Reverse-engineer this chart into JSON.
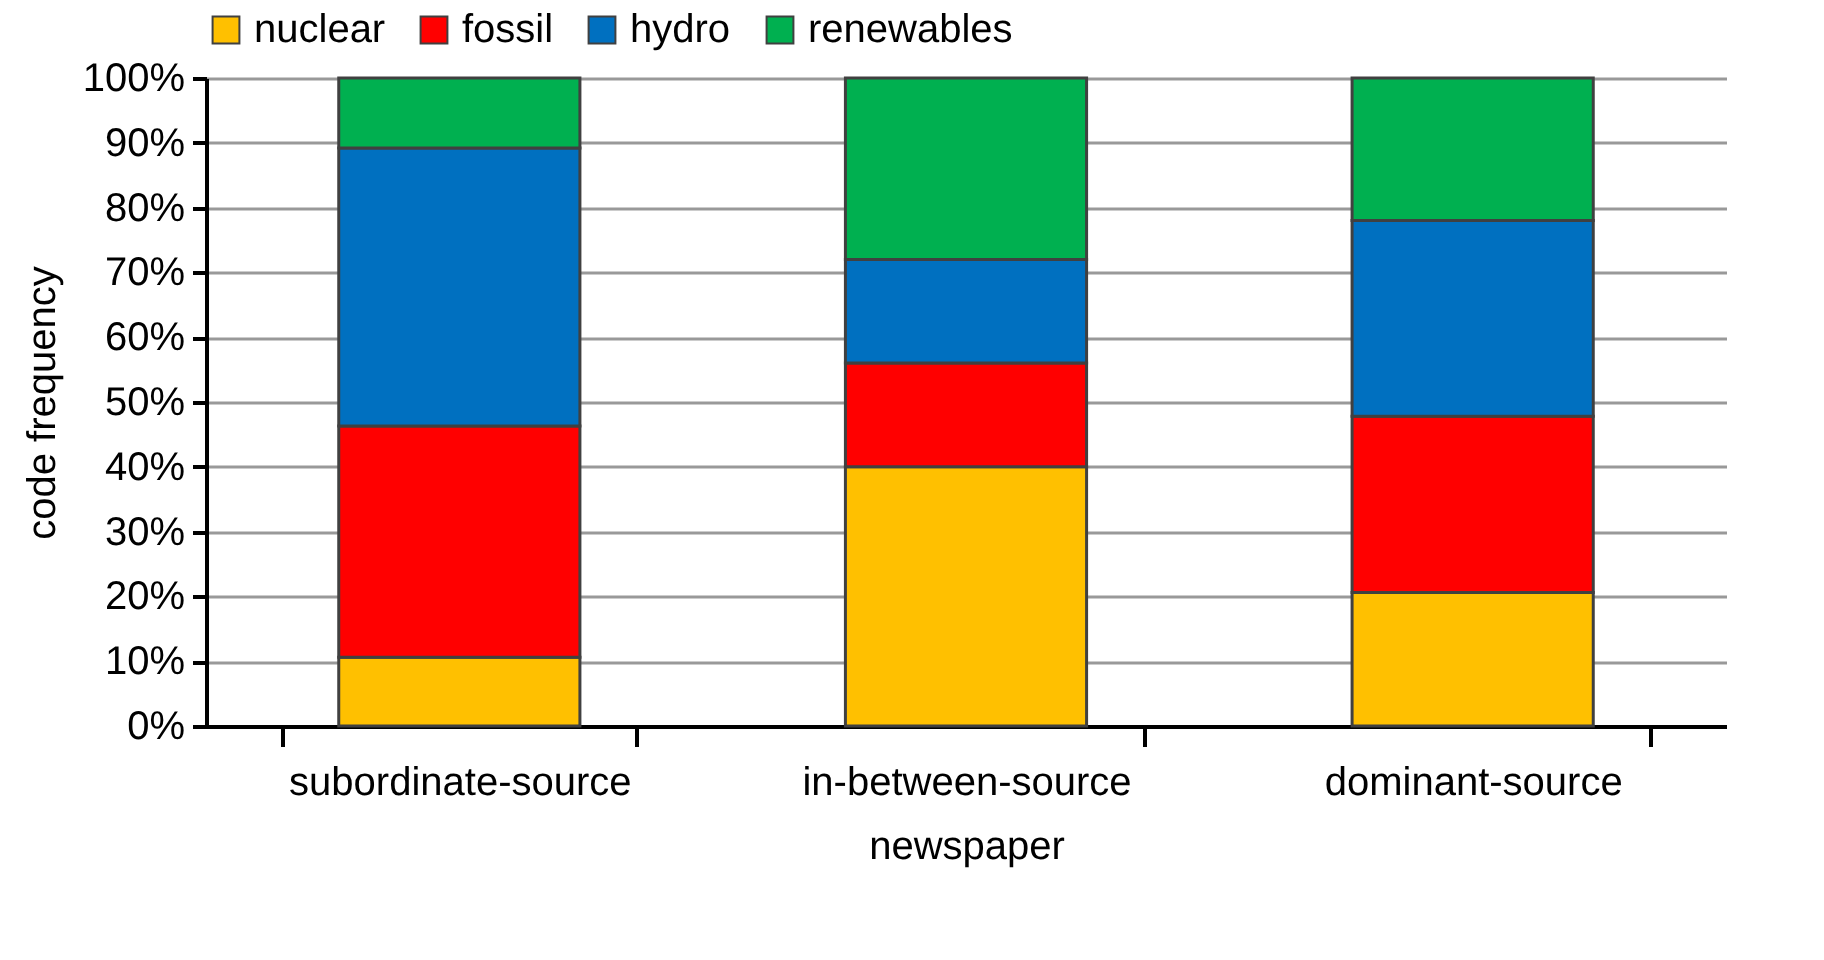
{
  "chart_data": {
    "type": "bar",
    "stacked": true,
    "xlabel": "newspaper",
    "ylabel": "code frequency",
    "categories": [
      "subordinate-source",
      "in-between-source",
      "dominant-source"
    ],
    "series": [
      {
        "name": "nuclear",
        "color": "#ffc000",
        "values": [
          10.6,
          40,
          20.6
        ]
      },
      {
        "name": "fossil",
        "color": "#ff0000",
        "values": [
          35.7,
          16,
          27.2
        ]
      },
      {
        "name": "hydro",
        "color": "#0070c0",
        "values": [
          42.9,
          16,
          30.2
        ]
      },
      {
        "name": "renewables",
        "color": "#00b050",
        "values": [
          10.8,
          28,
          22
        ]
      }
    ],
    "ylim": [
      0,
      100
    ],
    "yticks": [
      {
        "value": 0,
        "label": "0%"
      },
      {
        "value": 10,
        "label": "10%"
      },
      {
        "value": 20,
        "label": "20%"
      },
      {
        "value": 30,
        "label": "30%"
      },
      {
        "value": 40,
        "label": "40%"
      },
      {
        "value": 50,
        "label": "50%"
      },
      {
        "value": 60,
        "label": "60%"
      },
      {
        "value": 70,
        "label": "70%"
      },
      {
        "value": 80,
        "label": "80%"
      },
      {
        "value": 90,
        "label": "90%"
      },
      {
        "value": 100,
        "label": "100%"
      }
    ],
    "grid": "y",
    "legend": "top"
  }
}
